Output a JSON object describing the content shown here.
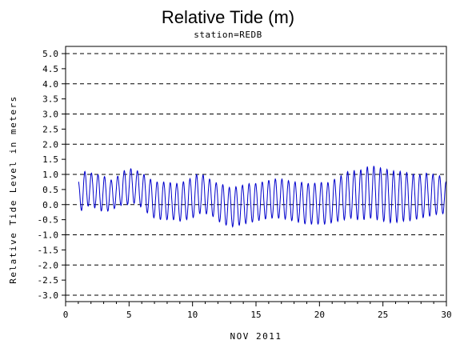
{
  "chart_data": {
    "type": "line",
    "title": "Relative Tide (m)",
    "subtitle": "station=REDB",
    "xlabel": "NOV 2011",
    "ylabel": "Relative Tide Level in meters",
    "xlim": [
      0,
      30
    ],
    "ylim": [
      -3.0,
      5.0
    ],
    "x_ticks": [
      0,
      5,
      10,
      15,
      20,
      25,
      30
    ],
    "y_ticks": [
      "5.0",
      "4.5",
      "4.0",
      "3.5",
      "3.0",
      "2.5",
      "2.0",
      "1.5",
      "1.0",
      "0.5",
      "0.0",
      "-0.5",
      "-1.0",
      "-1.5",
      "-2.0",
      "-2.5",
      "-3.0"
    ],
    "grid": "dashed horizontal at whole meters",
    "series": [
      {
        "color": "#0000cc",
        "x": [
          1.0,
          1.5,
          2.0,
          2.5,
          3.0,
          3.5,
          4.0,
          4.5,
          5.0,
          5.5,
          6.0,
          6.5,
          7.0,
          7.5,
          8.0,
          8.5,
          9.0,
          9.5,
          10.0,
          10.5,
          11.0,
          11.5,
          12.0,
          12.5,
          13.0,
          13.5,
          14.0,
          14.5,
          15.0,
          15.5,
          16.0,
          16.5,
          17.0,
          17.5,
          18.0,
          18.5,
          19.0,
          19.5,
          20.0,
          20.5,
          21.0,
          21.5,
          22.0,
          22.5,
          23.0,
          23.5,
          24.0,
          24.5,
          25.0,
          25.5,
          26.0,
          26.5,
          27.0,
          27.5,
          28.0,
          28.5,
          29.0,
          29.5,
          30.0
        ],
        "y": [
          0.75,
          1.1,
          1.05,
          1.0,
          0.95,
          0.8,
          0.9,
          1.1,
          1.2,
          1.15,
          1.05,
          0.9,
          0.75,
          0.75,
          0.75,
          0.7,
          0.7,
          0.8,
          0.9,
          1.05,
          0.95,
          0.8,
          0.7,
          0.65,
          0.55,
          0.6,
          0.65,
          0.7,
          0.7,
          0.75,
          0.8,
          0.85,
          0.85,
          0.8,
          0.75,
          0.75,
          0.7,
          0.7,
          0.75,
          0.7,
          0.8,
          0.9,
          1.05,
          1.15,
          1.1,
          1.2,
          1.3,
          1.25,
          1.2,
          1.15,
          1.1,
          1.1,
          1.05,
          1.0,
          1.0,
          1.05,
          1.0,
          0.95,
          0.75
        ],
        "low": [
          -0.35,
          -0.05,
          -0.05,
          -0.15,
          -0.25,
          -0.2,
          -0.1,
          0.0,
          0.0,
          0.05,
          -0.1,
          -0.3,
          -0.45,
          -0.5,
          -0.5,
          -0.5,
          -0.55,
          -0.5,
          -0.45,
          -0.3,
          -0.3,
          -0.35,
          -0.55,
          -0.65,
          -0.75,
          -0.7,
          -0.65,
          -0.6,
          -0.55,
          -0.5,
          -0.45,
          -0.45,
          -0.45,
          -0.5,
          -0.55,
          -0.6,
          -0.65,
          -0.65,
          -0.65,
          -0.65,
          -0.6,
          -0.55,
          -0.5,
          -0.45,
          -0.5,
          -0.5,
          -0.45,
          -0.5,
          -0.55,
          -0.6,
          -0.6,
          -0.55,
          -0.55,
          -0.5,
          -0.45,
          -0.4,
          -0.35,
          -0.3,
          -0.3
        ]
      }
    ]
  }
}
